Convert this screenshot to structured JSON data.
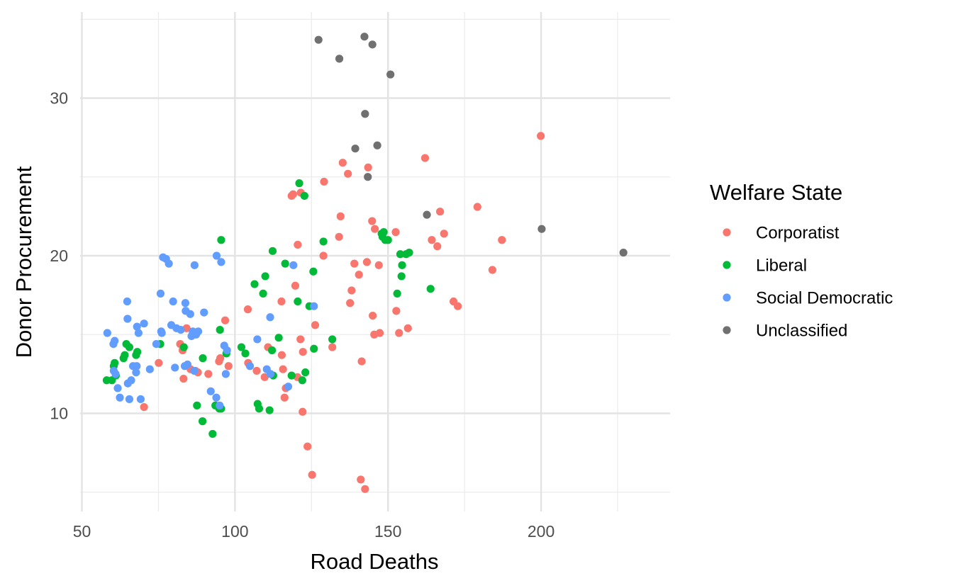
{
  "chart_data": {
    "type": "scatter",
    "xlabel": "Road Deaths",
    "ylabel": "Donor Procurement",
    "xlim": [
      50,
      240
    ],
    "ylim": [
      4.8,
      35.1
    ],
    "x_ticks": [
      50,
      100,
      150,
      200
    ],
    "y_ticks": [
      10,
      20,
      30
    ],
    "grid": true,
    "legend": {
      "title": "Welfare State",
      "position": "right"
    },
    "series": [
      {
        "name": "Corporatist",
        "color": "#F8766D",
        "points": [
          [
            70.3,
            10.4
          ],
          [
            75.1,
            13.2
          ],
          [
            82.1,
            14.4
          ],
          [
            82.9,
            14.0
          ],
          [
            83.2,
            12.2
          ],
          [
            84.2,
            15.4
          ],
          [
            85.5,
            12.8
          ],
          [
            86.1,
            15.0
          ],
          [
            87.1,
            12.7
          ],
          [
            87.9,
            12.6
          ],
          [
            91.3,
            12.5
          ],
          [
            94.8,
            13.3
          ],
          [
            95.2,
            13.5
          ],
          [
            96.8,
            15.9
          ],
          [
            97.9,
            13.0
          ],
          [
            104.2,
            16.6
          ],
          [
            104.3,
            13.2
          ],
          [
            107.1,
            12.7
          ],
          [
            109.7,
            12.3
          ],
          [
            110.8,
            14.2
          ],
          [
            115.2,
            17.1
          ],
          [
            115.3,
            13.7
          ],
          [
            115.7,
            12.8
          ],
          [
            116.2,
            11.0
          ],
          [
            116.6,
            11.6
          ],
          [
            118.5,
            23.8
          ],
          [
            119.0,
            23.9
          ],
          [
            119.7,
            18.1
          ],
          [
            120.4,
            12.3
          ],
          [
            120.5,
            20.7
          ],
          [
            121.4,
            14.7
          ],
          [
            121.5,
            24.0
          ],
          [
            122.1,
            10.1
          ],
          [
            122.2,
            13.9
          ],
          [
            123.7,
            7.9
          ],
          [
            125.2,
            6.1
          ],
          [
            126.2,
            15.6
          ],
          [
            128.9,
            20.0
          ],
          [
            129.1,
            24.7
          ],
          [
            131.8,
            14.2
          ],
          [
            134.0,
            21.2
          ],
          [
            134.5,
            22.5
          ],
          [
            135.2,
            25.9
          ],
          [
            136.9,
            25.2
          ],
          [
            137.6,
            17.0
          ],
          [
            138.1,
            17.8
          ],
          [
            139.0,
            19.5
          ],
          [
            140.5,
            18.8
          ],
          [
            141.1,
            5.8
          ],
          [
            141.4,
            13.3
          ],
          [
            142.5,
            5.2
          ],
          [
            143.1,
            19.6
          ],
          [
            143.5,
            25.6
          ],
          [
            144.8,
            22.2
          ],
          [
            145.0,
            16.2
          ],
          [
            145.5,
            15.0
          ],
          [
            145.7,
            21.7
          ],
          [
            147.0,
            19.4
          ],
          [
            147.3,
            15.1
          ],
          [
            152.5,
            21.5
          ],
          [
            152.7,
            16.5
          ],
          [
            153.6,
            15.1
          ],
          [
            156.5,
            15.4
          ],
          [
            162.1,
            26.2
          ],
          [
            164.3,
            21.0
          ],
          [
            166.1,
            20.6
          ],
          [
            167.0,
            22.8
          ],
          [
            168.3,
            21.4
          ],
          [
            171.4,
            17.1
          ],
          [
            172.8,
            16.8
          ],
          [
            179.2,
            23.1
          ],
          [
            184.1,
            19.1
          ],
          [
            187.2,
            21.0
          ],
          [
            199.9,
            27.6
          ]
        ]
      },
      {
        "name": "Liberal",
        "color": "#00BA38",
        "points": [
          [
            58.1,
            12.1
          ],
          [
            59.8,
            12.1
          ],
          [
            60.4,
            13.0
          ],
          [
            60.7,
            13.2
          ],
          [
            61.1,
            12.4
          ],
          [
            63.6,
            13.5
          ],
          [
            64.0,
            13.7
          ],
          [
            64.5,
            14.4
          ],
          [
            65.5,
            14.2
          ],
          [
            67.7,
            13.7
          ],
          [
            68.1,
            13.9
          ],
          [
            75.6,
            14.4
          ],
          [
            83.3,
            14.2
          ],
          [
            87.6,
            10.5
          ],
          [
            89.4,
            9.5
          ],
          [
            89.5,
            13.5
          ],
          [
            92.7,
            8.7
          ],
          [
            93.6,
            10.5
          ],
          [
            94.9,
            10.3
          ],
          [
            95.1,
            15.3
          ],
          [
            95.5,
            21.0
          ],
          [
            95.5,
            10.3
          ],
          [
            97.2,
            13.8
          ],
          [
            102.1,
            14.2
          ],
          [
            103.4,
            13.8
          ],
          [
            106.4,
            18.2
          ],
          [
            107.4,
            10.6
          ],
          [
            107.9,
            10.3
          ],
          [
            109.2,
            17.6
          ],
          [
            109.9,
            18.7
          ],
          [
            111.3,
            10.2
          ],
          [
            112.1,
            14.0
          ],
          [
            112.3,
            20.3
          ],
          [
            112.5,
            12.4
          ],
          [
            114.3,
            14.8
          ],
          [
            116.4,
            19.5
          ],
          [
            118.5,
            12.4
          ],
          [
            120.5,
            17.1
          ],
          [
            121.0,
            24.6
          ],
          [
            122.0,
            12.1
          ],
          [
            122.7,
            23.8
          ],
          [
            123.0,
            12.6
          ],
          [
            124.3,
            16.8
          ],
          [
            125.6,
            19.0
          ],
          [
            125.8,
            14.1
          ],
          [
            128.9,
            20.9
          ],
          [
            131.8,
            14.7
          ],
          [
            147.9,
            21.4
          ],
          [
            148.2,
            21.2
          ],
          [
            148.6,
            21.5
          ],
          [
            149.1,
            21.0
          ],
          [
            150.0,
            21.0
          ],
          [
            153.0,
            17.6
          ],
          [
            154.0,
            20.1
          ],
          [
            154.4,
            18.7
          ],
          [
            154.6,
            19.4
          ],
          [
            155.9,
            20.1
          ],
          [
            156.9,
            20.2
          ],
          [
            163.9,
            17.9
          ]
        ]
      },
      {
        "name": "Social Democratic",
        "color": "#619CFF",
        "points": [
          [
            58.3,
            15.1
          ],
          [
            60.3,
            14.4
          ],
          [
            60.4,
            12.7
          ],
          [
            60.7,
            14.6
          ],
          [
            61.0,
            12.5
          ],
          [
            61.7,
            11.6
          ],
          [
            62.4,
            11.0
          ],
          [
            64.8,
            17.1
          ],
          [
            64.9,
            16.0
          ],
          [
            65.0,
            11.9
          ],
          [
            65.5,
            10.9
          ],
          [
            66.1,
            12.1
          ],
          [
            66.7,
            13.0
          ],
          [
            67.7,
            12.6
          ],
          [
            67.9,
            13.0
          ],
          [
            68.0,
            15.5
          ],
          [
            68.5,
            15.1
          ],
          [
            69.2,
            10.9
          ],
          [
            70.3,
            15.7
          ],
          [
            72.2,
            12.8
          ],
          [
            74.3,
            14.4
          ],
          [
            75.7,
            17.6
          ],
          [
            75.9,
            15.2
          ],
          [
            76.1,
            15.1
          ],
          [
            76.5,
            19.9
          ],
          [
            77.5,
            19.8
          ],
          [
            78.4,
            19.5
          ],
          [
            79.2,
            15.6
          ],
          [
            79.8,
            17.1
          ],
          [
            80.4,
            12.9
          ],
          [
            80.9,
            15.4
          ],
          [
            82.3,
            15.3
          ],
          [
            83.6,
            13.0
          ],
          [
            83.8,
            17.0
          ],
          [
            83.9,
            16.5
          ],
          [
            84.5,
            13.1
          ],
          [
            85.4,
            16.3
          ],
          [
            85.8,
            14.9
          ],
          [
            86.2,
            15.2
          ],
          [
            86.7,
            12.7
          ],
          [
            86.8,
            19.4
          ],
          [
            87.3,
            15.0
          ],
          [
            88.0,
            15.2
          ],
          [
            89.9,
            16.4
          ],
          [
            92.1,
            11.4
          ],
          [
            93.9,
            11.0
          ],
          [
            94.0,
            20.0
          ],
          [
            95.0,
            10.5
          ],
          [
            95.5,
            19.6
          ],
          [
            96.5,
            14.3
          ],
          [
            97.0,
            12.5
          ],
          [
            97.4,
            14.0
          ],
          [
            104.9,
            13.0
          ],
          [
            107.3,
            14.7
          ],
          [
            110.4,
            12.8
          ],
          [
            111.5,
            16.1
          ],
          [
            111.6,
            12.5
          ],
          [
            117.4,
            11.7
          ],
          [
            119.1,
            19.4
          ],
          [
            125.8,
            16.8
          ]
        ]
      },
      {
        "name": "Unclassified",
        "color": "#707070",
        "points": [
          [
            127.3,
            33.7
          ],
          [
            134.1,
            32.5
          ],
          [
            139.3,
            26.8
          ],
          [
            142.3,
            33.9
          ],
          [
            142.5,
            29.0
          ],
          [
            143.4,
            25.0
          ],
          [
            144.9,
            33.4
          ],
          [
            146.5,
            27.0
          ],
          [
            150.8,
            31.5
          ],
          [
            162.7,
            22.6
          ],
          [
            200.2,
            21.7
          ],
          [
            226.9,
            20.2
          ]
        ]
      }
    ]
  }
}
